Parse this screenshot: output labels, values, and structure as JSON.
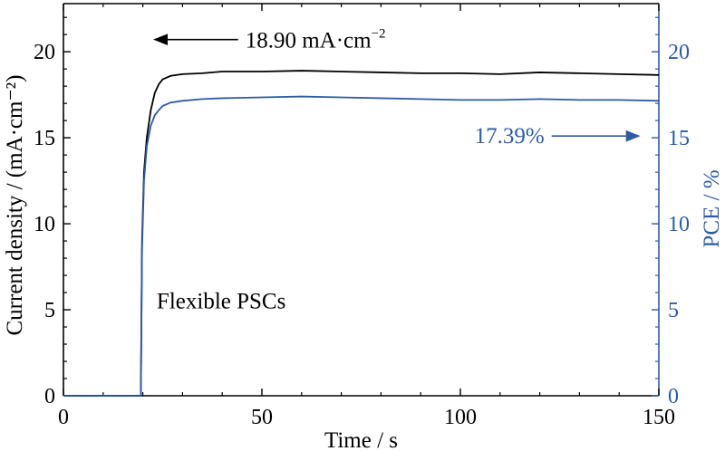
{
  "chart_data": {
    "type": "line",
    "title": "",
    "xlabel": "Time / s",
    "ylabel_left": "Current density / (mA·cm⁻²)",
    "ylabel_right": "PCE / %",
    "xlim": [
      0,
      150
    ],
    "ylim_left": [
      0,
      22.8
    ],
    "ylim_right": [
      0,
      22.8
    ],
    "xticks": [
      0,
      50,
      100,
      150
    ],
    "yticks_left": [
      0,
      5,
      10,
      15,
      20
    ],
    "yticks_right": [
      0,
      5,
      10,
      15,
      20
    ],
    "grid": false,
    "colors": {
      "current": "#000000",
      "pce": "#2e5aa3",
      "axis_left": "#000000",
      "axis_right": "#2e5aa3"
    },
    "series": [
      {
        "axis": "left",
        "color": "#000000",
        "x": [
          0,
          19.5,
          19.8,
          20.3,
          21,
          22,
          23,
          24,
          25,
          27,
          30,
          35,
          40,
          50,
          60,
          70,
          80,
          90,
          100,
          110,
          120,
          130,
          140,
          150
        ],
        "y": [
          0,
          0,
          9,
          13,
          15,
          16.6,
          17.6,
          18.1,
          18.4,
          18.6,
          18.7,
          18.75,
          18.85,
          18.85,
          18.9,
          18.85,
          18.8,
          18.75,
          18.75,
          18.7,
          18.8,
          18.75,
          18.7,
          18.65
        ]
      },
      {
        "axis": "right",
        "color": "#2e5aa3",
        "x": [
          0,
          19.5,
          19.8,
          20.3,
          21,
          22,
          23,
          24,
          25,
          27,
          30,
          35,
          40,
          50,
          60,
          70,
          80,
          90,
          100,
          110,
          120,
          130,
          140,
          150
        ],
        "y": [
          0,
          0,
          8.5,
          12.5,
          14.5,
          15.7,
          16.3,
          16.6,
          16.85,
          17.05,
          17.15,
          17.25,
          17.3,
          17.35,
          17.4,
          17.35,
          17.3,
          17.25,
          17.2,
          17.2,
          17.25,
          17.2,
          17.2,
          17.15
        ]
      }
    ],
    "annotations": {
      "current": {
        "text": "18.90 mA·cm",
        "sup": "−2",
        "arrow": "left",
        "x": [
          23,
          44
        ],
        "y": 20.5
      },
      "pce": {
        "text": "17.39%",
        "arrow": "right",
        "x": [
          123,
          145
        ],
        "y": 15.1
      },
      "label": {
        "text": "Flexible PSCs",
        "x": 23.5,
        "y": 5.5
      }
    }
  }
}
